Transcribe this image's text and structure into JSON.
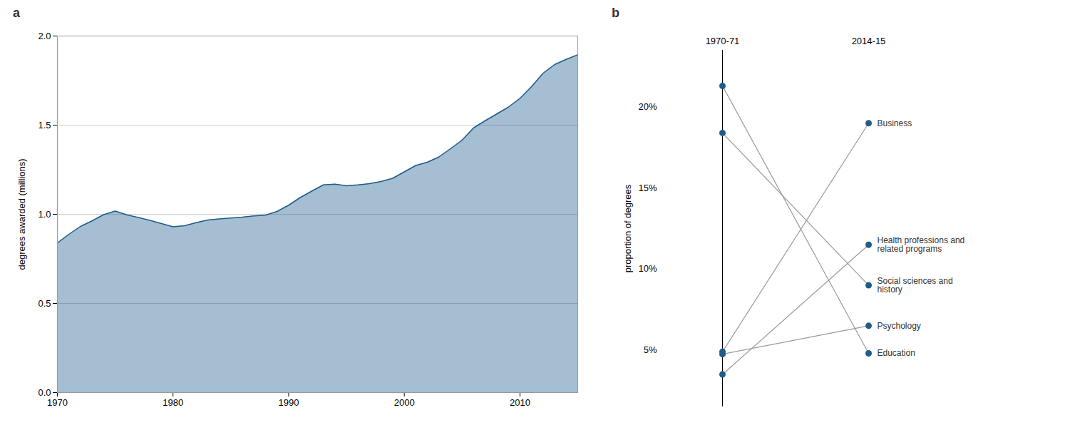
{
  "chart_data": [
    {
      "type": "area",
      "title": "a",
      "x": [
        1970,
        1971,
        1972,
        1973,
        1974,
        1975,
        1976,
        1977,
        1978,
        1979,
        1980,
        1981,
        1982,
        1983,
        1984,
        1985,
        1986,
        1987,
        1988,
        1989,
        1990,
        1991,
        1992,
        1993,
        1994,
        1995,
        1996,
        1997,
        1998,
        1999,
        2000,
        2001,
        2002,
        2003,
        2004,
        2005,
        2006,
        2007,
        2008,
        2009,
        2010,
        2011,
        2012,
        2013,
        2014,
        2015
      ],
      "values": [
        0.839,
        0.888,
        0.932,
        0.963,
        0.998,
        1.018,
        0.997,
        0.982,
        0.966,
        0.948,
        0.93,
        0.936,
        0.953,
        0.968,
        0.974,
        0.979,
        0.984,
        0.991,
        0.995,
        1.016,
        1.051,
        1.094,
        1.13,
        1.165,
        1.169,
        1.16,
        1.165,
        1.172,
        1.184,
        1.202,
        1.238,
        1.274,
        1.292,
        1.322,
        1.368,
        1.416,
        1.485,
        1.525,
        1.563,
        1.601,
        1.65,
        1.716,
        1.791,
        1.84,
        1.869,
        1.895
      ],
      "color": "#1f5c8b",
      "ylabel": "degrees awarded (millions)",
      "xlim": [
        1970,
        2015
      ],
      "xticks": [
        1970,
        1980,
        1990,
        2000,
        2010
      ],
      "ylim": [
        0.0,
        2.0
      ],
      "yticks": [
        {
          "value": 0.0,
          "label": "0.0"
        },
        0.5,
        {
          "value": 1.0,
          "label": "1.0"
        },
        1.5,
        {
          "value": 2.0,
          "label": "2.0"
        }
      ],
      "grid": true
    },
    {
      "type": "slope",
      "title": "b",
      "categories": [
        "1970-71",
        "2014-15"
      ],
      "series": [
        {
          "name": "Business",
          "color": "#999999",
          "values": [
            4.9,
            19.0
          ]
        },
        {
          "name": "Social sciences and\nhistory",
          "color": "#999999",
          "values": [
            18.4,
            9.0
          ]
        },
        {
          "name": "Education",
          "color": "#999999",
          "values": [
            21.3,
            4.8
          ]
        },
        {
          "name": "Health professions and\nrelated programs",
          "color": "#999999",
          "values": [
            3.5,
            11.5
          ]
        },
        {
          "name": "Psychology",
          "color": "#999999",
          "values": [
            4.75,
            6.5
          ]
        }
      ],
      "color": "#1f5c8b",
      "marker": "o",
      "ylabel": "proportion of degrees",
      "ylim": [
        1.5,
        23.5
      ],
      "yticks": [
        {
          "value": 5,
          "label": "5%"
        },
        {
          "value": 10,
          "label": "10%"
        },
        {
          "value": 15,
          "label": "15%"
        },
        {
          "value": 20,
          "label": "20%"
        }
      ],
      "grid": true
    }
  ]
}
